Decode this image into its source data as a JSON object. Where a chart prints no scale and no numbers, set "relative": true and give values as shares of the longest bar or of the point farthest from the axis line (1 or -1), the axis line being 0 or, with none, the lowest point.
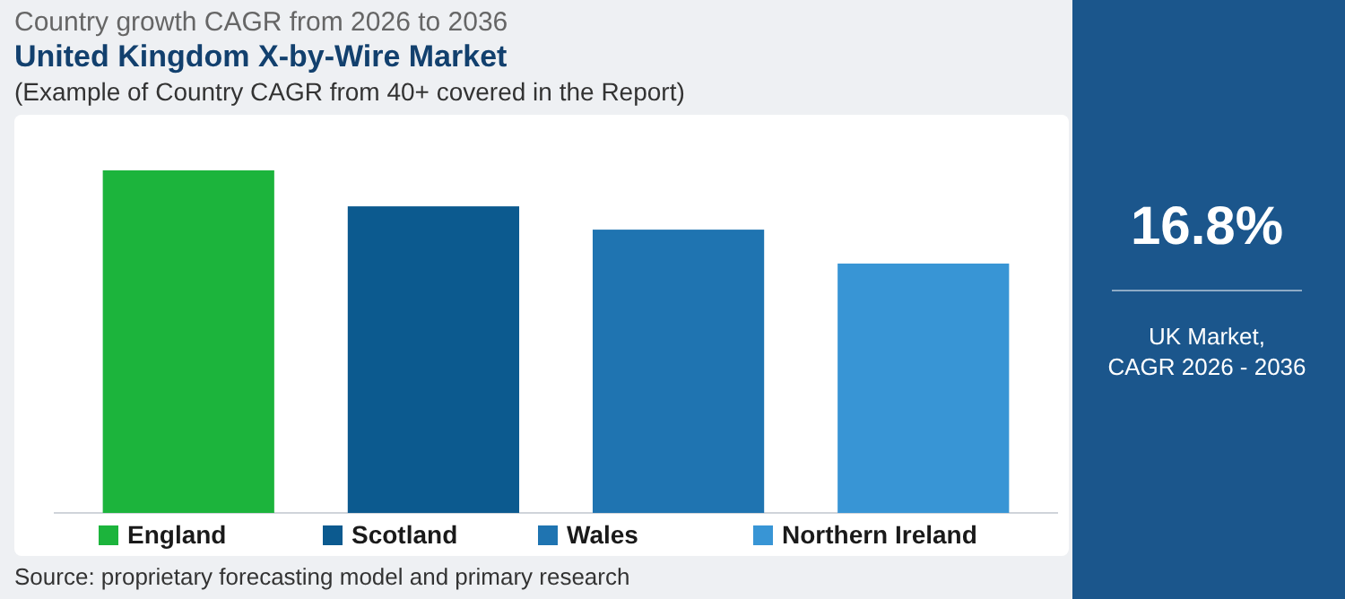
{
  "chart_data": [
    {
      "type": "bar",
      "title": "United Kingdom X-by-Wire Market",
      "subtitle": "(Example of Country CAGR from 40+ covered in the Report)",
      "relative": true,
      "categories": [
        "England",
        "Scotland",
        "Wales",
        "Northern Ireland"
      ],
      "values": [
        1,
        0.895,
        0.827,
        0.728
      ],
      "colors": [
        "#1cb43c",
        "#0c5a8f",
        "#1f74b1",
        "#3895d5"
      ],
      "annotations": [
        "Country growth CAGR from 2026 to 2036",
        "Source: proprietary forecasting model and primary research"
      ]
    },
    {
      "type": "other",
      "title": "16.8%",
      "annotations": [
        "UK Market,",
        "CAGR 2026 - 2036"
      ]
    }
  ]
}
